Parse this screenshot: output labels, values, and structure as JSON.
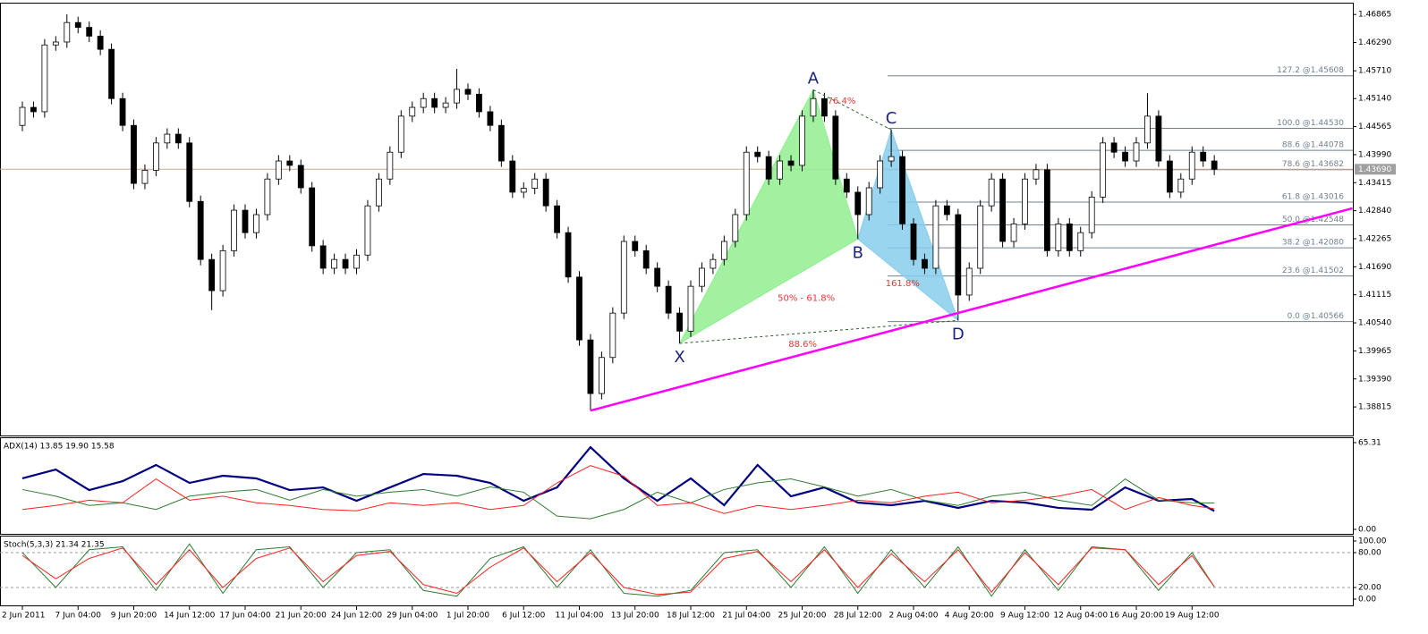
{
  "chart_data": [
    {
      "type": "candlestick",
      "categories": [
        "2 Jun 2011",
        null,
        null,
        null,
        null,
        "7 Jun 04:00",
        null,
        null,
        null,
        null,
        "9 Jun 20:00",
        null,
        null,
        null,
        null,
        "14 Jun 12:00",
        null,
        null,
        null,
        null,
        "17 Jun 04:00",
        null,
        null,
        null,
        null,
        "21 Jun 20:00",
        null,
        null,
        null,
        null,
        "24 Jun 12:00",
        null,
        null,
        null,
        null,
        "29 Jun 04:00",
        null,
        null,
        null,
        null,
        "1 Jul 20:00",
        null,
        null,
        null,
        null,
        "6 Jul 12:00",
        null,
        null,
        null,
        null,
        "11 Jul 04:00",
        null,
        null,
        null,
        null,
        "13 Jul 20:00",
        null,
        null,
        null,
        null,
        "18 Jul 12:00",
        null,
        null,
        null,
        null,
        "21 Jul 04:00",
        null,
        null,
        null,
        null,
        "25 Jul 20:00",
        null,
        null,
        null,
        null,
        "28 Jul 12:00",
        null,
        null,
        null,
        null,
        "2 Aug 04:00",
        null,
        null,
        null,
        null,
        "4 Aug 20:00",
        null,
        null,
        null,
        null,
        "9 Aug 12:00",
        null,
        null,
        null,
        null,
        "12 Aug 04:00",
        null,
        null,
        null,
        null,
        "16 Aug 20:00",
        null,
        null,
        null,
        null,
        "19 Aug 12:00",
        null,
        null
      ],
      "open": [
        1.4459,
        1.4496,
        1.4487,
        1.4624,
        1.463,
        1.467,
        1.466,
        1.4642,
        1.4615,
        1.4514,
        1.4459,
        1.434,
        1.4367,
        1.4423,
        1.4441,
        1.4423,
        1.4303,
        1.4184,
        1.412,
        1.4202,
        1.4285,
        1.4239,
        1.4276,
        1.4349,
        1.4386,
        1.4377,
        1.4331,
        1.4212,
        1.4166,
        1.4184,
        1.4166,
        1.4193,
        1.4294,
        1.4349,
        1.4404,
        1.4478,
        1.4496,
        1.4514,
        1.4496,
        1.4505,
        1.4533,
        1.4523,
        1.4487,
        1.4459,
        1.4386,
        1.4322,
        1.433,
        1.4349,
        1.4294,
        1.4239,
        1.4148,
        1.4019,
        1.3909,
        1.3983,
        1.4074,
        1.4221,
        1.4202,
        1.4166,
        1.4129,
        1.4074,
        1.4037,
        1.4129,
        1.4166,
        1.4184,
        1.4221,
        1.4276,
        1.4404,
        1.4395,
        1.4349,
        1.4386,
        1.4377,
        1.4478,
        1.4514,
        1.4478,
        1.4349,
        1.4322,
        1.4276,
        1.4331,
        1.4386,
        1.4395,
        1.4257,
        1.4184,
        1.4166,
        1.4294,
        1.4276,
        1.4111,
        1.4166,
        1.4294,
        1.4349,
        1.4221,
        1.4257,
        1.4349,
        1.4368,
        1.4202,
        1.4257,
        1.4202,
        1.4239,
        1.4312,
        1.4423,
        1.4404,
        1.4386,
        1.4423,
        1.4478,
        1.4386,
        1.4322,
        1.4349,
        1.4404,
        1.4386
      ],
      "high": [
        1.4508,
        1.4508,
        1.4636,
        1.4642,
        1.4687,
        1.4682,
        1.4672,
        1.4654,
        1.4627,
        1.4526,
        1.4471,
        1.4379,
        1.4435,
        1.4453,
        1.4453,
        1.4435,
        1.4315,
        1.4196,
        1.4214,
        1.4297,
        1.4297,
        1.4288,
        1.4361,
        1.4398,
        1.4398,
        1.4389,
        1.4343,
        1.4224,
        1.4196,
        1.4196,
        1.4205,
        1.4306,
        1.4361,
        1.4416,
        1.449,
        1.4508,
        1.4526,
        1.4526,
        1.4517,
        1.4575,
        1.4545,
        1.4535,
        1.4499,
        1.4471,
        1.4398,
        1.4342,
        1.4361,
        1.4361,
        1.4306,
        1.4251,
        1.416,
        1.4031,
        1.3995,
        1.4086,
        1.4233,
        1.4233,
        1.4214,
        1.4178,
        1.4141,
        1.4086,
        1.4141,
        1.4178,
        1.4196,
        1.4233,
        1.4288,
        1.4416,
        1.4416,
        1.4407,
        1.4398,
        1.4398,
        1.449,
        1.4532,
        1.4526,
        1.449,
        1.4361,
        1.4334,
        1.4343,
        1.4398,
        1.445,
        1.4407,
        1.4269,
        1.4196,
        1.4306,
        1.4306,
        1.4288,
        1.4178,
        1.4306,
        1.4361,
        1.4361,
        1.4269,
        1.4361,
        1.438,
        1.438,
        1.4269,
        1.4269,
        1.4251,
        1.4324,
        1.4435,
        1.4435,
        1.4416,
        1.4435,
        1.4525,
        1.449,
        1.4398,
        1.4361,
        1.4416,
        1.4416,
        1.4398
      ],
      "low": [
        1.4447,
        1.4475,
        1.4475,
        1.4612,
        1.4618,
        1.4648,
        1.463,
        1.4603,
        1.4502,
        1.4447,
        1.4328,
        1.4328,
        1.4355,
        1.4411,
        1.4411,
        1.4291,
        1.4172,
        1.408,
        1.4108,
        1.419,
        1.4227,
        1.4227,
        1.4264,
        1.4337,
        1.4365,
        1.4319,
        1.42,
        1.4154,
        1.4154,
        1.4154,
        1.4154,
        1.4181,
        1.4282,
        1.4337,
        1.4392,
        1.4466,
        1.4484,
        1.4484,
        1.4484,
        1.4493,
        1.4511,
        1.4475,
        1.4447,
        1.4374,
        1.431,
        1.431,
        1.4318,
        1.4282,
        1.4227,
        1.4136,
        1.4007,
        1.3874,
        1.3897,
        1.3971,
        1.4062,
        1.419,
        1.4154,
        1.4117,
        1.4062,
        1.4012,
        1.4025,
        1.4117,
        1.4154,
        1.4172,
        1.4209,
        1.4264,
        1.4383,
        1.4337,
        1.4337,
        1.4365,
        1.4365,
        1.4466,
        1.4466,
        1.4337,
        1.431,
        1.4226,
        1.4264,
        1.4319,
        1.4374,
        1.4245,
        1.4172,
        1.4154,
        1.4154,
        1.4264,
        1.4059,
        1.4099,
        1.4154,
        1.4282,
        1.4209,
        1.4209,
        1.4245,
        1.4337,
        1.419,
        1.419,
        1.419,
        1.419,
        1.4227,
        1.43,
        1.4392,
        1.4374,
        1.4374,
        1.4411,
        1.4374,
        1.431,
        1.431,
        1.4337,
        1.4374,
        1.4357
      ],
      "close": [
        1.4496,
        1.4487,
        1.4624,
        1.463,
        1.467,
        1.466,
        1.4642,
        1.4615,
        1.4514,
        1.4459,
        1.434,
        1.4367,
        1.4423,
        1.4441,
        1.4423,
        1.4303,
        1.4184,
        1.412,
        1.4202,
        1.4285,
        1.4239,
        1.4276,
        1.4349,
        1.4386,
        1.4377,
        1.4331,
        1.4212,
        1.4166,
        1.4184,
        1.4166,
        1.4193,
        1.4294,
        1.4349,
        1.4404,
        1.4478,
        1.4496,
        1.4514,
        1.4496,
        1.4505,
        1.4533,
        1.4523,
        1.4487,
        1.4459,
        1.4386,
        1.4322,
        1.433,
        1.4349,
        1.4294,
        1.4239,
        1.4148,
        1.4019,
        1.3909,
        1.3983,
        1.4074,
        1.4221,
        1.4202,
        1.4166,
        1.4129,
        1.4074,
        1.4037,
        1.4129,
        1.4166,
        1.4184,
        1.4221,
        1.4276,
        1.4404,
        1.4395,
        1.4349,
        1.4386,
        1.4377,
        1.4478,
        1.4514,
        1.4478,
        1.4349,
        1.4322,
        1.4276,
        1.4331,
        1.4386,
        1.4395,
        1.4257,
        1.4184,
        1.4166,
        1.4294,
        1.4276,
        1.4111,
        1.4166,
        1.4294,
        1.4349,
        1.4221,
        1.4257,
        1.4349,
        1.4368,
        1.4202,
        1.4257,
        1.4202,
        1.4239,
        1.4312,
        1.4423,
        1.4404,
        1.4386,
        1.4423,
        1.4478,
        1.4386,
        1.4322,
        1.4349,
        1.4404,
        1.4386,
        1.4369
      ],
      "up_color": "#ffffff",
      "down_color": "#000000",
      "ylim": [
        1.3823,
        1.4707
      ],
      "yticks": [
        1.46865,
        {
          "value": 1.4629,
          "label": "1.46290"
        },
        {
          "value": 1.4571,
          "label": "1.45710"
        },
        {
          "value": 1.4514,
          "label": "1.45140"
        },
        1.44565,
        {
          "value": 1.4399,
          "label": "1.43990"
        },
        1.43415,
        {
          "value": 1.4284,
          "label": "1.42840"
        },
        1.42265,
        {
          "value": 1.4169,
          "label": "1.41690"
        },
        1.41115,
        {
          "value": 1.4054,
          "label": "1.40540"
        },
        1.39965,
        {
          "value": 1.3939,
          "label": "1.39390"
        },
        1.38815
      ],
      "current_price": {
        "value": 1.4369,
        "label": "1.43690",
        "color": "#c8a890"
      },
      "pattern": {
        "points": [
          {
            "label": "X",
            "x": 59,
            "y": 1.4012
          },
          {
            "label": "A",
            "x": 71,
            "y": 1.4532
          },
          {
            "label": "B",
            "x": 75,
            "y": 1.4226
          },
          {
            "label": "C",
            "x": 78,
            "y": 1.445
          },
          {
            "label": "D",
            "x": 84,
            "y": 1.4059
          }
        ],
        "xab_color": "#90ee90",
        "bcd_color": "#87ceeb",
        "label_color": "#1a237e",
        "ratio_color": "#e53935",
        "ratio_labels": {
          "AC": "76.4%",
          "XB": "50% - 61.8%",
          "BD": "161.8%",
          "XD": "88.6%"
        }
      },
      "trendline": {
        "x": [
          51,
          119.4
        ],
        "y": [
          1.3874,
          1.4289
        ],
        "color": "#ff00ff"
      },
      "fib_color": "#708090",
      "fib_levels": [
        {
          "value": 1.45608,
          "label": "127.2 @1.45608"
        },
        {
          "value": 1.4453,
          "label": "100.0 @1.44530"
        },
        {
          "value": 1.44078,
          "label": "88.6 @1.44078"
        },
        {
          "value": 1.43682,
          "label": "78.6 @1.43682"
        },
        {
          "value": 1.43016,
          "label": "61.8 @1.43016"
        },
        {
          "value": 1.42548,
          "label": "50.0 @1.42548"
        },
        {
          "value": 1.4208,
          "label": "38.2 @1.42080"
        },
        {
          "value": 1.41502,
          "label": "23.6 @1.41502"
        },
        {
          "value": 1.40566,
          "label": "0.0 @1.40566"
        }
      ]
    },
    {
      "type": "line",
      "title": "ADX(14) 13.85 19.90 15.58",
      "x": [
        0,
        3,
        6,
        9,
        12,
        15,
        18,
        21,
        24,
        27,
        30,
        33,
        36,
        39,
        42,
        45,
        48,
        51,
        54,
        57,
        60,
        63,
        66,
        69,
        72,
        75,
        78,
        81,
        84,
        87,
        90,
        93,
        96,
        99,
        102,
        105,
        107
      ],
      "series": [
        {
          "color": "#000080",
          "line_width": 2.2,
          "values": [
            38.4,
            45.1,
            29.6,
            36.3,
            48.5,
            35.0,
            40.4,
            38.4,
            29.6,
            31.6,
            21.5,
            31.6,
            41.7,
            40.4,
            35.0,
            21.5,
            31.6,
            61.9,
            38.4,
            21.5,
            38.4,
            18.2,
            48.5,
            24.9,
            31.6,
            20.2,
            18.2,
            21.5,
            16.2,
            21.5,
            20.2,
            16.2,
            14.8,
            31.6,
            21.5,
            22.9,
            13.85
          ]
        },
        {
          "color": "#2e7d32",
          "line_width": 1,
          "values": [
            30,
            25,
            18,
            20,
            15,
            25,
            28,
            30,
            22,
            30,
            25,
            28,
            30,
            25,
            32,
            28,
            10,
            8,
            15,
            28,
            20,
            30,
            35,
            38,
            32,
            25,
            30,
            22,
            18,
            25,
            28,
            22,
            18,
            38,
            22,
            20,
            19.9
          ]
        },
        {
          "color": "#ff2020",
          "line_width": 1,
          "values": [
            15,
            18,
            22,
            20,
            38,
            22,
            25,
            20,
            18,
            15,
            14,
            20,
            18,
            20,
            15,
            18,
            35,
            48,
            40,
            18,
            20,
            12,
            18,
            15,
            18,
            22,
            20,
            25,
            28,
            20,
            22,
            25,
            30,
            15,
            24,
            18,
            15.58
          ]
        }
      ],
      "ylim": [
        0,
        65.31
      ],
      "yticks": [
        65.31,
        {
          "value": 0,
          "label": "0.00"
        }
      ]
    },
    {
      "type": "line",
      "title": "Stoch(5,3,3) 21.34 21.35",
      "x": [
        0,
        3,
        6,
        9,
        12,
        15,
        18,
        21,
        24,
        27,
        30,
        33,
        36,
        39,
        42,
        45,
        48,
        51,
        54,
        57,
        60,
        63,
        66,
        69,
        72,
        75,
        78,
        81,
        84,
        87,
        90,
        93,
        96,
        99,
        102,
        105,
        107
      ],
      "series": [
        {
          "color": "#2e7d32",
          "line_width": 1,
          "values": [
            80,
            20,
            85,
            90,
            15,
            95,
            10,
            85,
            90,
            20,
            80,
            85,
            15,
            5,
            70,
            90,
            20,
            85,
            10,
            5,
            15,
            80,
            85,
            20,
            90,
            10,
            85,
            20,
            90,
            5,
            85,
            15,
            90,
            85,
            15,
            80,
            21.34
          ]
        },
        {
          "color": "#ff2020",
          "line_width": 1,
          "values": [
            75,
            35,
            70,
            88,
            25,
            85,
            20,
            70,
            88,
            30,
            75,
            82,
            25,
            10,
            55,
            88,
            30,
            80,
            20,
            8,
            12,
            70,
            82,
            30,
            85,
            20,
            78,
            30,
            85,
            12,
            80,
            25,
            88,
            85,
            25,
            75,
            21.35
          ]
        }
      ],
      "ylim": [
        0,
        100
      ],
      "yticks": [
        {
          "value": 100,
          "label": "100.00"
        },
        {
          "value": 80,
          "label": "80.00"
        },
        {
          "value": 20,
          "label": "20.00"
        },
        {
          "value": 0,
          "label": "0.00"
        }
      ],
      "levels": [
        80,
        20
      ]
    }
  ]
}
